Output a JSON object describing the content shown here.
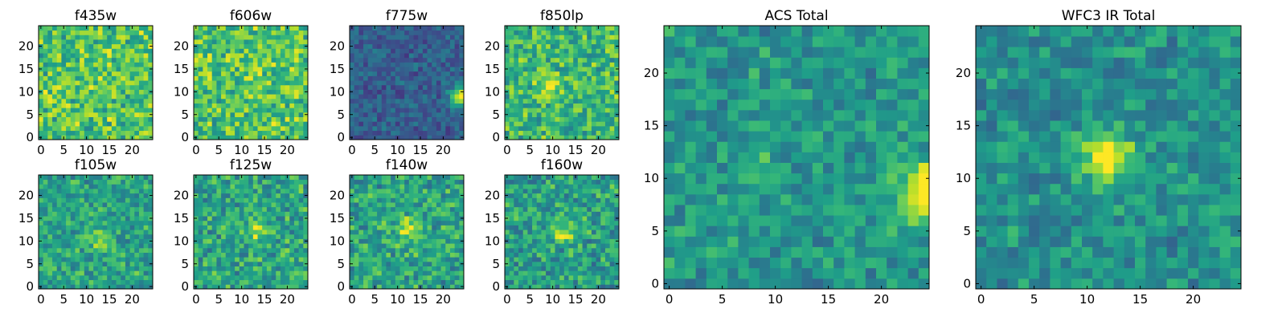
{
  "figure": {
    "colormap": "viridis",
    "colors": {
      "viridis_stops": [
        "#440154",
        "#482878",
        "#3e4a89",
        "#31688e",
        "#26828e",
        "#1f9e89",
        "#35b779",
        "#6ece58",
        "#b5de2b",
        "#fde725"
      ]
    }
  },
  "chart_data": [
    {
      "type": "heatmap",
      "title": "f435w",
      "grid": [
        25,
        25
      ],
      "x_ticks": [
        "0",
        "5",
        "10",
        "15",
        "20"
      ],
      "y_ticks": [
        "0",
        "5",
        "10",
        "15",
        "20"
      ],
      "xlim": [
        0,
        24
      ],
      "ylim": [
        0,
        24
      ],
      "seed": 11,
      "base": 0.72,
      "spread": 0.22,
      "lo": 0.0,
      "hi": 1.0,
      "blobs": []
    },
    {
      "type": "heatmap",
      "title": "f606w",
      "grid": [
        25,
        25
      ],
      "x_ticks": [
        "0",
        "5",
        "10",
        "15",
        "20"
      ],
      "y_ticks": [
        "0",
        "5",
        "10",
        "15",
        "20"
      ],
      "xlim": [
        0,
        24
      ],
      "ylim": [
        0,
        24
      ],
      "seed": 23,
      "base": 0.72,
      "spread": 0.22,
      "lo": 0.0,
      "hi": 1.0,
      "blobs": []
    },
    {
      "type": "heatmap",
      "title": "f775w",
      "grid": [
        25,
        25
      ],
      "x_ticks": [
        "0",
        "5",
        "10",
        "15",
        "20"
      ],
      "y_ticks": [
        "0",
        "5",
        "10",
        "15",
        "20"
      ],
      "xlim": [
        0,
        24
      ],
      "ylim": [
        0,
        24
      ],
      "seed": 37,
      "base": 0.3,
      "spread": 0.12,
      "lo": 0.0,
      "hi": 1.0,
      "blobs": [
        {
          "x": 24,
          "y": 9,
          "r": 1.6,
          "a": 0.7
        }
      ]
    },
    {
      "type": "heatmap",
      "title": "f850lp",
      "grid": [
        25,
        25
      ],
      "x_ticks": [
        "0",
        "5",
        "10",
        "15",
        "20"
      ],
      "y_ticks": [
        "0",
        "5",
        "10",
        "15",
        "20"
      ],
      "xlim": [
        0,
        24
      ],
      "ylim": [
        0,
        24
      ],
      "seed": 41,
      "base": 0.66,
      "spread": 0.2,
      "lo": 0.0,
      "hi": 1.0,
      "blobs": [
        {
          "x": 9,
          "y": 11,
          "r": 1.5,
          "a": 0.3
        }
      ]
    },
    {
      "type": "heatmap",
      "title": "f105w",
      "grid": [
        25,
        25
      ],
      "x_ticks": [
        "0",
        "5",
        "10",
        "15",
        "20"
      ],
      "y_ticks": [
        "0",
        "5",
        "10",
        "15",
        "20"
      ],
      "xlim": [
        0,
        24
      ],
      "ylim": [
        0,
        24
      ],
      "seed": 53,
      "base": 0.58,
      "spread": 0.18,
      "lo": 0.0,
      "hi": 1.0,
      "blobs": [
        {
          "x": 13,
          "y": 10,
          "r": 1.6,
          "a": 0.3
        }
      ]
    },
    {
      "type": "heatmap",
      "title": "f125w",
      "grid": [
        25,
        25
      ],
      "x_ticks": [
        "0",
        "5",
        "10",
        "15",
        "20"
      ],
      "y_ticks": [
        "0",
        "5",
        "10",
        "15",
        "20"
      ],
      "xlim": [
        0,
        24
      ],
      "ylim": [
        0,
        24
      ],
      "seed": 61,
      "base": 0.58,
      "spread": 0.2,
      "lo": 0.0,
      "hi": 1.0,
      "blobs": [
        {
          "x": 13,
          "y": 12,
          "r": 1.8,
          "a": 0.3
        }
      ]
    },
    {
      "type": "heatmap",
      "title": "f140w",
      "grid": [
        25,
        25
      ],
      "x_ticks": [
        "0",
        "5",
        "10",
        "15",
        "20"
      ],
      "y_ticks": [
        "0",
        "5",
        "10",
        "15",
        "20"
      ],
      "xlim": [
        0,
        24
      ],
      "ylim": [
        0,
        24
      ],
      "seed": 71,
      "base": 0.58,
      "spread": 0.2,
      "lo": 0.0,
      "hi": 1.0,
      "blobs": [
        {
          "x": 12,
          "y": 13,
          "r": 1.6,
          "a": 0.35
        }
      ]
    },
    {
      "type": "heatmap",
      "title": "f160w",
      "grid": [
        25,
        25
      ],
      "x_ticks": [
        "0",
        "5",
        "10",
        "15",
        "20"
      ],
      "y_ticks": [
        "0",
        "5",
        "10",
        "15",
        "20"
      ],
      "xlim": [
        0,
        24
      ],
      "ylim": [
        0,
        24
      ],
      "seed": 83,
      "base": 0.56,
      "spread": 0.2,
      "lo": 0.0,
      "hi": 1.0,
      "blobs": [
        {
          "x": 12,
          "y": 12,
          "r": 1.6,
          "a": 0.35
        }
      ]
    },
    {
      "type": "heatmap",
      "title": "ACS Total",
      "grid": [
        25,
        25
      ],
      "x_ticks": [
        "0",
        "5",
        "10",
        "15",
        "20"
      ],
      "y_ticks": [
        "0",
        "5",
        "10",
        "15",
        "20"
      ],
      "xlim": [
        0,
        24
      ],
      "ylim": [
        0,
        24
      ],
      "seed": 97,
      "base": 0.52,
      "spread": 0.15,
      "lo": 0.0,
      "hi": 1.0,
      "blobs": [
        {
          "x": 24,
          "y": 9,
          "r": 1.8,
          "a": 0.55
        },
        {
          "x": 8,
          "y": 11,
          "r": 1.2,
          "a": 0.25
        }
      ]
    },
    {
      "type": "heatmap",
      "title": "WFC3 IR Total",
      "grid": [
        25,
        25
      ],
      "x_ticks": [
        "0",
        "5",
        "10",
        "15",
        "20"
      ],
      "y_ticks": [
        "0",
        "5",
        "10",
        "15",
        "20"
      ],
      "xlim": [
        0,
        24
      ],
      "ylim": [
        0,
        24
      ],
      "seed": 109,
      "base": 0.5,
      "spread": 0.15,
      "lo": 0.0,
      "hi": 1.0,
      "blobs": [
        {
          "x": 12,
          "y": 12,
          "r": 1.6,
          "a": 0.6
        }
      ]
    }
  ]
}
